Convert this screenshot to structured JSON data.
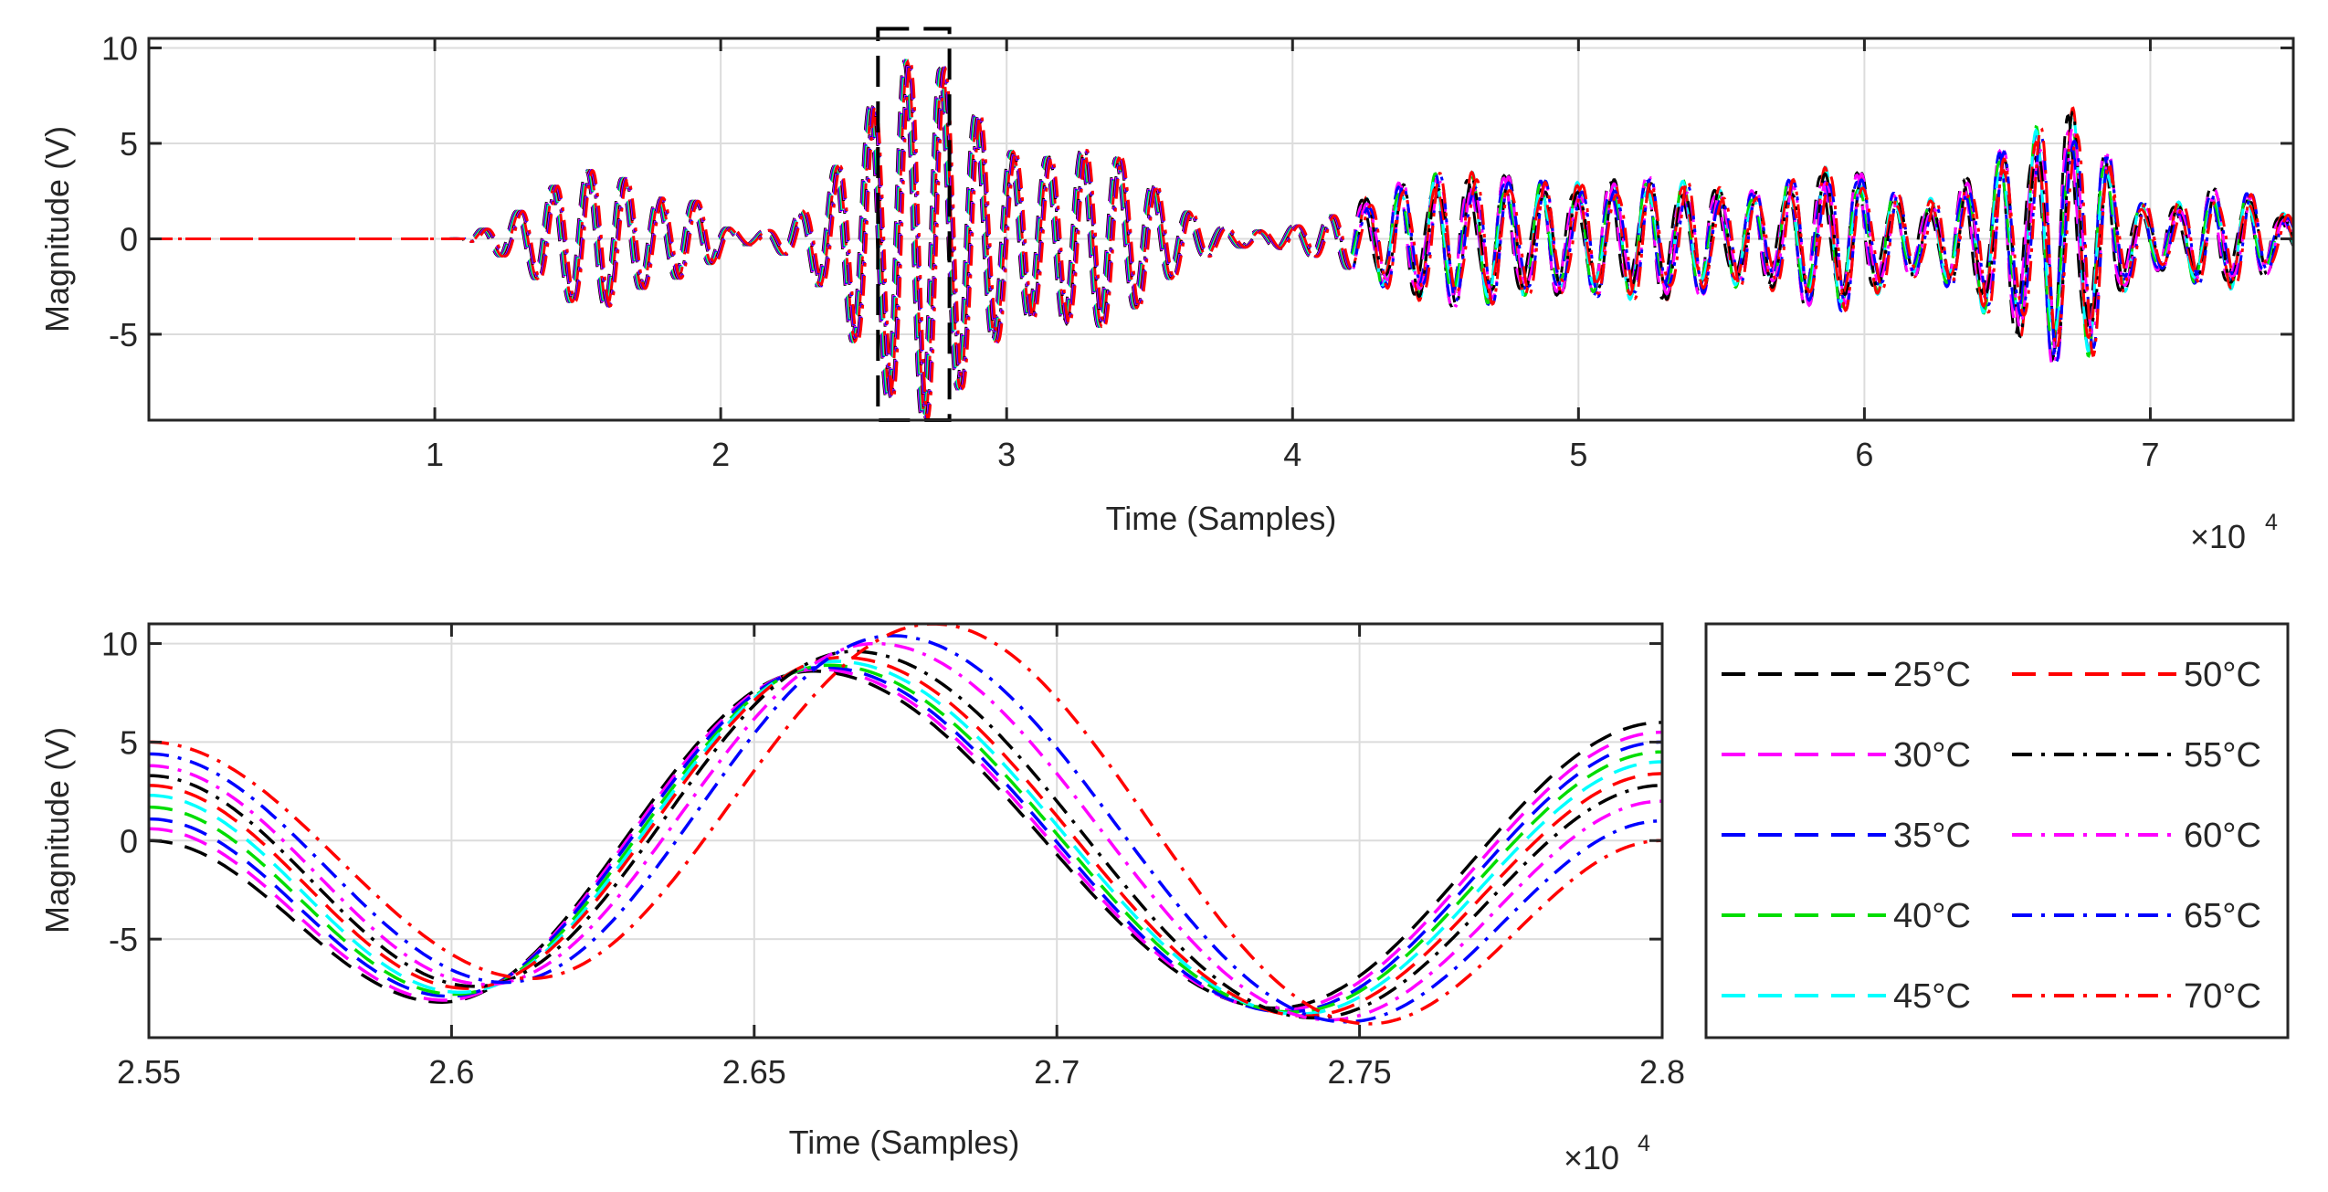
{
  "chart_data": [
    {
      "type": "line",
      "panel": "top",
      "xlabel": "Time (Samples)",
      "ylabel": "Magnitude (V)",
      "x_exponent_base": "×10",
      "x_exponent_power": "4",
      "xlim": [
        0,
        7.5
      ],
      "ylim": [
        -9.5,
        10.5
      ],
      "xticks": [
        1,
        2,
        3,
        4,
        5,
        6,
        7
      ],
      "xtick_labels": [
        "1",
        "2",
        "3",
        "4",
        "5",
        "6",
        "7"
      ],
      "yticks": [
        -5,
        0,
        5,
        10
      ],
      "ytick_labels": [
        "-5",
        "0",
        "5",
        "10"
      ],
      "grid": true,
      "zoom_box": {
        "x": [
          2.55,
          2.8
        ],
        "y": [
          -9.5,
          11.0
        ]
      },
      "series": [
        {
          "name": "25°C",
          "color": "#000000",
          "style": "dashed"
        },
        {
          "name": "30°C",
          "color": "#ff00ff",
          "style": "dashed"
        },
        {
          "name": "35°C",
          "color": "#0000ff",
          "style": "dashed"
        },
        {
          "name": "40°C",
          "color": "#00dd00",
          "style": "dashed"
        },
        {
          "name": "45°C",
          "color": "#00ffff",
          "style": "dashed"
        },
        {
          "name": "50°C",
          "color": "#ff0000",
          "style": "dashed"
        },
        {
          "name": "55°C",
          "color": "#000000",
          "style": "dashdot"
        },
        {
          "name": "60°C",
          "color": "#ff00ff",
          "style": "dashdot"
        },
        {
          "name": "65°C",
          "color": "#0000ff",
          "style": "dashdot"
        },
        {
          "name": "70°C",
          "color": "#ff0000",
          "style": "dashdot"
        }
      ]
    },
    {
      "type": "line",
      "panel": "bottom",
      "xlabel": "Time (Samples)",
      "ylabel": "Magnitude (V)",
      "x_exponent_base": "×10",
      "x_exponent_power": "4",
      "xlim": [
        2.55,
        2.8
      ],
      "ylim": [
        -10.0,
        11.0
      ],
      "xticks": [
        2.55,
        2.6,
        2.65,
        2.7,
        2.75,
        2.8
      ],
      "xtick_labels": [
        "2.55",
        "2.6",
        "2.65",
        "2.7",
        "2.75",
        "2.8"
      ],
      "yticks": [
        -5,
        0,
        5,
        10
      ],
      "ytick_labels": [
        "-5",
        "0",
        "5",
        "10"
      ],
      "grid": true,
      "legend_position": "right-outside",
      "series": [
        {
          "name": "25°C",
          "color": "#000000",
          "style": "dashed",
          "x": [
            2.55,
            2.5983,
            2.6596,
            2.7361,
            2.8
          ],
          "y": [
            0.0,
            -8.2,
            8.6,
            -8.5,
            6.0
          ]
        },
        {
          "name": "30°C",
          "color": "#ff00ff",
          "style": "dashed",
          "x": [
            2.55,
            2.5988,
            2.6605,
            2.737,
            2.8
          ],
          "y": [
            0.6,
            -8.1,
            8.7,
            -8.6,
            5.5
          ]
        },
        {
          "name": "35°C",
          "color": "#0000ff",
          "style": "dashed",
          "x": [
            2.55,
            2.5996,
            2.6614,
            2.7379,
            2.8
          ],
          "y": [
            1.1,
            -7.9,
            8.8,
            -8.7,
            5.0
          ]
        },
        {
          "name": "40°C",
          "color": "#00dd00",
          "style": "dashed",
          "x": [
            2.55,
            2.6005,
            2.6624,
            2.7389,
            2.8
          ],
          "y": [
            1.7,
            -7.8,
            8.9,
            -8.7,
            4.5
          ]
        },
        {
          "name": "45°C",
          "color": "#00ffff",
          "style": "dashed",
          "x": [
            2.55,
            2.6014,
            2.6634,
            2.74,
            2.8
          ],
          "y": [
            2.3,
            -7.7,
            9.1,
            -8.8,
            4.0
          ]
        },
        {
          "name": "50°C",
          "color": "#ff0000",
          "style": "dashed",
          "x": [
            2.55,
            2.6025,
            2.6646,
            2.741,
            2.8
          ],
          "y": [
            2.8,
            -7.5,
            9.3,
            -8.9,
            3.4
          ]
        },
        {
          "name": "55°C",
          "color": "#000000",
          "style": "dashdot",
          "x": [
            2.55,
            2.6039,
            2.6664,
            2.7425,
            2.8
          ],
          "y": [
            3.3,
            -7.4,
            9.6,
            -9.0,
            2.8
          ]
        },
        {
          "name": "60°C",
          "color": "#ff00ff",
          "style": "dashdot",
          "x": [
            2.55,
            2.6058,
            2.67,
            2.745,
            2.8
          ],
          "y": [
            3.8,
            -7.3,
            10.0,
            -9.1,
            2.0
          ]
        },
        {
          "name": "65°C",
          "color": "#0000ff",
          "style": "dashdot",
          "x": [
            2.55,
            2.6089,
            2.6728,
            2.7478,
            2.8
          ],
          "y": [
            4.4,
            -7.2,
            10.4,
            -9.2,
            1.0
          ]
        },
        {
          "name": "70°C",
          "color": "#ff0000",
          "style": "dashdot",
          "x": [
            2.55,
            2.6131,
            2.6796,
            2.7515,
            2.8
          ],
          "y": [
            5.0,
            -7.0,
            11.0,
            -9.3,
            0.0
          ]
        }
      ]
    }
  ]
}
